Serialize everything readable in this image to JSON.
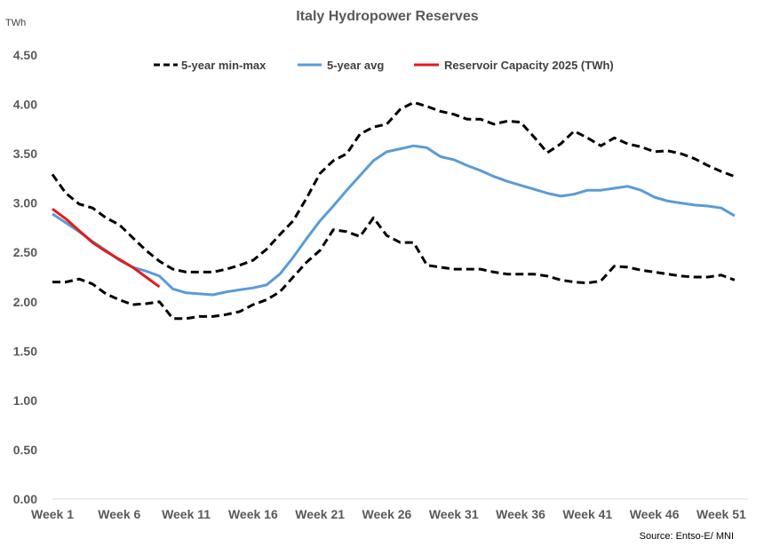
{
  "chart_data": {
    "type": "line",
    "title": "Italy Hydropower Reserves",
    "ylabel": "TWh",
    "source": "Source: Entso-E/ MNI",
    "ylim": [
      0,
      4.5
    ],
    "yticks": [
      "0.00",
      "0.50",
      "1.00",
      "1.50",
      "2.00",
      "2.50",
      "3.00",
      "3.50",
      "4.00",
      "4.50"
    ],
    "xlim": [
      1,
      53
    ],
    "xticks": [
      {
        "week": 1,
        "label": "Week 1"
      },
      {
        "week": 6,
        "label": "Week 6"
      },
      {
        "week": 11,
        "label": "Week 11"
      },
      {
        "week": 16,
        "label": "Week 16"
      },
      {
        "week": 21,
        "label": "Week 21"
      },
      {
        "week": 26,
        "label": "Week 26"
      },
      {
        "week": 31,
        "label": "Week 31"
      },
      {
        "week": 36,
        "label": "Week 36"
      },
      {
        "week": 41,
        "label": "Week 41"
      },
      {
        "week": 46,
        "label": "Week 46"
      },
      {
        "week": 51,
        "label": "Week 51"
      }
    ],
    "legend": [
      {
        "label": "5-year min-max",
        "color": "#000000",
        "style": "dashed"
      },
      {
        "label": "5-year avg",
        "color": "#5b9bd5",
        "style": "solid"
      },
      {
        "label": "Reservoir Capacity 2025 (TWh)",
        "color": "#e31a1c",
        "style": "solid"
      }
    ],
    "series": [
      {
        "name": "5-year max",
        "color": "#000000",
        "style": "dashed",
        "x": [
          1,
          2,
          3,
          4,
          5,
          6,
          7,
          8,
          9,
          10,
          11,
          12,
          13,
          14,
          15,
          16,
          17,
          18,
          19,
          20,
          21,
          22,
          23,
          24,
          25,
          26,
          27,
          28,
          29,
          30,
          31,
          32,
          33,
          34,
          35,
          36,
          37,
          38,
          39,
          40,
          41,
          42,
          43,
          44,
          45,
          46,
          47,
          48,
          49,
          50,
          51,
          52
        ],
        "y": [
          3.29,
          3.1,
          2.99,
          2.95,
          2.85,
          2.78,
          2.65,
          2.52,
          2.41,
          2.33,
          2.3,
          2.3,
          2.3,
          2.33,
          2.37,
          2.42,
          2.53,
          2.68,
          2.82,
          3.05,
          3.3,
          3.43,
          3.5,
          3.7,
          3.77,
          3.8,
          3.95,
          4.02,
          3.98,
          3.93,
          3.9,
          3.85,
          3.85,
          3.8,
          3.83,
          3.82,
          3.67,
          3.51,
          3.6,
          3.73,
          3.66,
          3.58,
          3.66,
          3.6,
          3.57,
          3.52,
          3.53,
          3.5,
          3.45,
          3.38,
          3.32,
          3.27
        ]
      },
      {
        "name": "5-year min",
        "color": "#000000",
        "style": "dashed",
        "x": [
          1,
          2,
          3,
          4,
          5,
          6,
          7,
          8,
          9,
          10,
          11,
          12,
          13,
          14,
          15,
          16,
          17,
          18,
          19,
          20,
          21,
          22,
          23,
          24,
          25,
          26,
          27,
          28,
          29,
          30,
          31,
          32,
          33,
          34,
          35,
          36,
          37,
          38,
          39,
          40,
          41,
          42,
          43,
          44,
          45,
          46,
          47,
          48,
          49,
          50,
          51,
          52
        ],
        "y": [
          2.2,
          2.2,
          2.23,
          2.18,
          2.08,
          2.02,
          1.97,
          1.98,
          2.0,
          1.83,
          1.83,
          1.85,
          1.85,
          1.87,
          1.9,
          1.97,
          2.02,
          2.1,
          2.25,
          2.4,
          2.52,
          2.73,
          2.71,
          2.66,
          2.85,
          2.67,
          2.6,
          2.6,
          2.37,
          2.35,
          2.33,
          2.33,
          2.33,
          2.3,
          2.28,
          2.28,
          2.28,
          2.26,
          2.22,
          2.2,
          2.19,
          2.21,
          2.36,
          2.35,
          2.32,
          2.3,
          2.28,
          2.26,
          2.25,
          2.25,
          2.27,
          2.22
        ]
      },
      {
        "name": "5-year avg",
        "color": "#5b9bd5",
        "style": "solid",
        "x": [
          1,
          2,
          3,
          4,
          5,
          6,
          7,
          8,
          9,
          10,
          11,
          12,
          13,
          14,
          15,
          16,
          17,
          18,
          19,
          20,
          21,
          22,
          23,
          24,
          25,
          26,
          27,
          28,
          29,
          30,
          31,
          32,
          33,
          34,
          35,
          36,
          37,
          38,
          39,
          40,
          41,
          42,
          43,
          44,
          45,
          46,
          47,
          48,
          49,
          50,
          51,
          52
        ],
        "y": [
          2.89,
          2.8,
          2.71,
          2.61,
          2.52,
          2.42,
          2.35,
          2.31,
          2.26,
          2.13,
          2.09,
          2.08,
          2.07,
          2.1,
          2.12,
          2.14,
          2.17,
          2.28,
          2.45,
          2.64,
          2.82,
          2.97,
          3.13,
          3.28,
          3.43,
          3.52,
          3.55,
          3.58,
          3.56,
          3.47,
          3.44,
          3.38,
          3.33,
          3.27,
          3.22,
          3.18,
          3.14,
          3.1,
          3.07,
          3.09,
          3.13,
          3.13,
          3.15,
          3.17,
          3.13,
          3.06,
          3.02,
          3.0,
          2.98,
          2.97,
          2.95,
          2.87
        ]
      },
      {
        "name": "Reservoir Capacity 2025 (TWh)",
        "color": "#e31a1c",
        "style": "solid",
        "x": [
          1,
          2,
          3,
          4,
          5,
          6,
          7,
          8,
          9
        ],
        "y": [
          2.94,
          2.84,
          2.72,
          2.6,
          2.51,
          2.43,
          2.35,
          2.25,
          2.15
        ]
      }
    ]
  }
}
